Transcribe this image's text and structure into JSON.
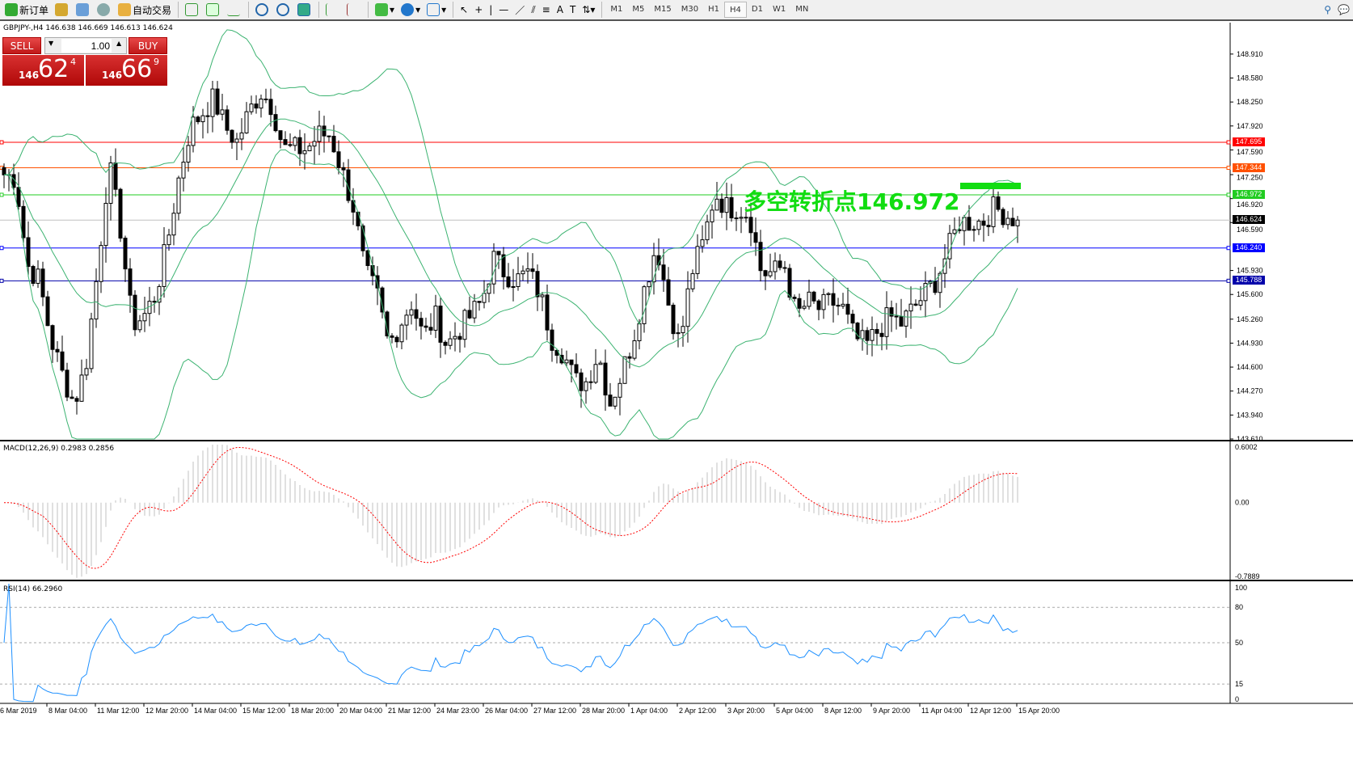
{
  "toolbar": {
    "new_order": "新订单",
    "auto_trading": "自动交易",
    "timeframes": [
      "M1",
      "M5",
      "M15",
      "M30",
      "H1",
      "H4",
      "D1",
      "W1",
      "MN"
    ],
    "active_timeframe": "H4"
  },
  "chart": {
    "symbol_line": "GBPJPY-,H4  146.638 146.669 146.613 146.624",
    "sell_label": "SELL",
    "buy_label": "BUY",
    "lot": "1.00",
    "sell_price": {
      "small": "146",
      "large": "62",
      "sup": "4"
    },
    "buy_price": {
      "small": "146",
      "large": "66",
      "sup": "9"
    },
    "annotation": "多空转折点146.972",
    "price_ticks": [
      "148.910",
      "148.580",
      "148.250",
      "147.920",
      "147.590",
      "147.250",
      "146.920",
      "146.590",
      "145.930",
      "145.600",
      "145.260",
      "144.930",
      "144.600",
      "144.270",
      "143.940",
      "143.610"
    ],
    "price_range": [
      143.61,
      149.12
    ],
    "hlines": [
      {
        "price": 147.695,
        "label": "147.695",
        "color": "#ff0000"
      },
      {
        "price": 147.344,
        "label": "147.344",
        "color": "#ff5000"
      },
      {
        "price": 146.972,
        "label": "146.972",
        "color": "#22cc22"
      },
      {
        "price": 146.624,
        "label": "146.624",
        "color": "#000000",
        "line": "#c0c0c0"
      },
      {
        "price": 146.24,
        "label": "146.240",
        "color": "#0000ff"
      },
      {
        "price": 145.788,
        "label": "145.788",
        "color": "#0000aa"
      }
    ],
    "closes": [
      147.25,
      147.2,
      146.0,
      145.8,
      145.0,
      144.5,
      144.1,
      144.6,
      145.9,
      147.4,
      146.5,
      145.2,
      145.3,
      145.6,
      146.3,
      147.2,
      147.9,
      148.1,
      148.3,
      147.9,
      147.7,
      148.1,
      148.4,
      148.2,
      147.6,
      147.6,
      147.6,
      147.8,
      147.8,
      147.3,
      146.8,
      145.9,
      145.6,
      144.9,
      145.2,
      145.5,
      145.0,
      145.3,
      144.9,
      145.1,
      145.3,
      145.5,
      146.1,
      145.9,
      145.8,
      145.9,
      145.6,
      145.0,
      144.8,
      144.4,
      144.4,
      144.8,
      144.1,
      144.5,
      145.0,
      145.7,
      146.3,
      145.5,
      144.9,
      145.9,
      146.3,
      147.0,
      146.8,
      146.8,
      146.7,
      145.9,
      145.9,
      146.0,
      145.3,
      145.5,
      145.4,
      145.5,
      145.4,
      145.0,
      144.9,
      145.1,
      145.3,
      145.2,
      145.4,
      145.6,
      145.8,
      146.2,
      146.6,
      146.6,
      146.6,
      146.8,
      146.7,
      146.624
    ],
    "bollinger_color": "#3cb371",
    "candle_color": "#000000"
  },
  "macd": {
    "label": "MACD(12,26,9) 0.2983 0.2856",
    "ticks": [
      "0.6002",
      "0.00",
      "-0.7889"
    ],
    "range": [
      -0.7889,
      0.6002
    ],
    "signal_color": "#ff0000",
    "hist_color": "#c0c0c0"
  },
  "rsi": {
    "label": "RSI(14) 66.2960",
    "ticks": [
      "100",
      "80",
      "50",
      "15",
      "0"
    ],
    "levels": [
      80,
      50,
      15
    ],
    "line_color": "#1e90ff"
  },
  "time_axis": [
    "6 Mar 2019",
    "8 Mar 04:00",
    "11 Mar 12:00",
    "12 Mar 20:00",
    "14 Mar 04:00",
    "15 Mar 12:00",
    "18 Mar 20:00",
    "20 Mar 04:00",
    "21 Mar 12:00",
    "24 Mar 23:00",
    "26 Mar 04:00",
    "27 Mar 12:00",
    "28 Mar 20:00",
    "1 Apr 04:00",
    "2 Apr 12:00",
    "3 Apr 20:00",
    "5 Apr 04:00",
    "8 Apr 12:00",
    "9 Apr 20:00",
    "11 Apr 04:00",
    "12 Apr 12:00",
    "15 Apr 20:00"
  ]
}
